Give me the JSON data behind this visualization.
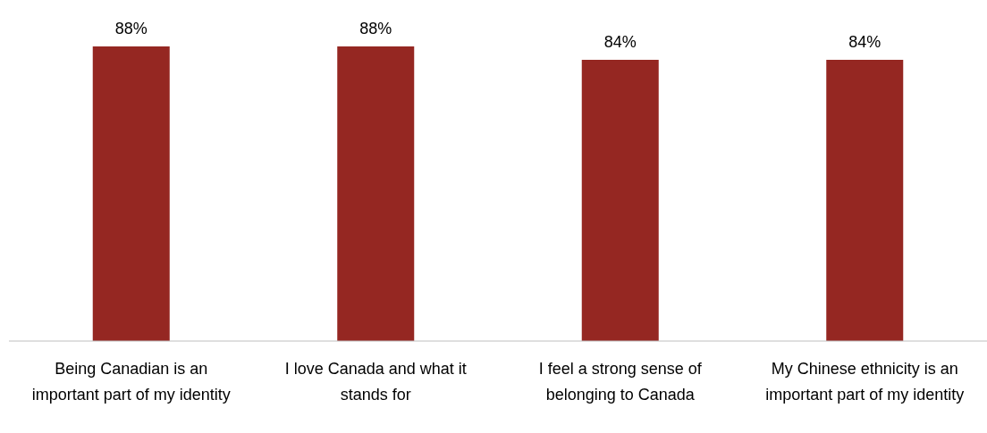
{
  "chart_data": {
    "type": "bar",
    "categories": [
      "Being Canadian is an important part of my identity",
      "I love Canada and what it stands for",
      "I feel a strong sense of belonging to Canada",
      "My Chinese ethnicity is an important part of my identity"
    ],
    "values": [
      88,
      88,
      84,
      84
    ],
    "value_labels": [
      "88%",
      "88%",
      "84%",
      "84%"
    ],
    "color": "#952722"
  }
}
